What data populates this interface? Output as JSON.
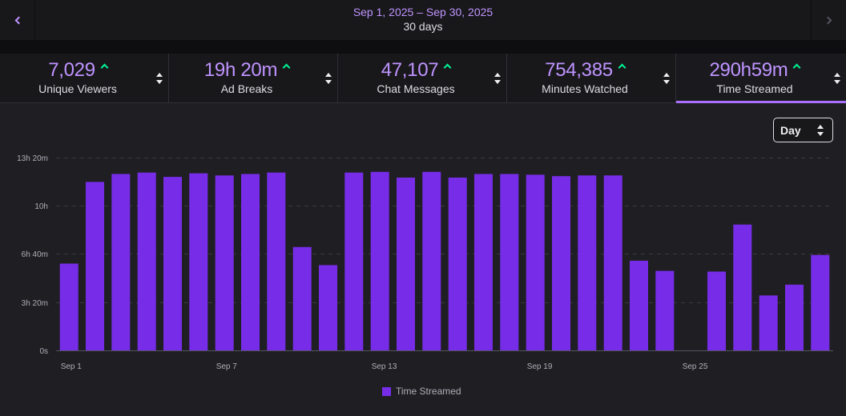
{
  "header": {
    "date_range": "Sep 1, 2025 – Sep 30, 2025",
    "duration": "30 days"
  },
  "stats": [
    {
      "value": "7,029",
      "label": "Unique Viewers",
      "active": false
    },
    {
      "value": "19h 20m",
      "label": "Ad Breaks",
      "active": false
    },
    {
      "value": "47,107",
      "label": "Chat Messages",
      "active": false
    },
    {
      "value": "754,385",
      "label": "Minutes Watched",
      "active": false
    },
    {
      "value": "290h59m",
      "label": "Time Streamed",
      "active": true
    }
  ],
  "controls": {
    "granularity": "Day"
  },
  "colors": {
    "accent": "#bf94ff",
    "bar": "#772ce8",
    "trend_up": "#00f593"
  },
  "chart_data": {
    "type": "bar",
    "title": "",
    "xlabel": "",
    "ylabel": "",
    "units": "hours",
    "ylim": [
      0,
      13.333
    ],
    "yticks": [
      {
        "value": 0,
        "label": "0s"
      },
      {
        "value": 3.333,
        "label": "3h 20m"
      },
      {
        "value": 6.667,
        "label": "6h 40m"
      },
      {
        "value": 10,
        "label": "10h"
      },
      {
        "value": 13.333,
        "label": "13h 20m"
      }
    ],
    "grid": true,
    "categories": [
      "Sep 1",
      "Sep 2",
      "Sep 3",
      "Sep 4",
      "Sep 5",
      "Sep 6",
      "Sep 7",
      "Sep 8",
      "Sep 9",
      "Sep 10",
      "Sep 11",
      "Sep 12",
      "Sep 13",
      "Sep 14",
      "Sep 15",
      "Sep 16",
      "Sep 17",
      "Sep 18",
      "Sep 19",
      "Sep 20",
      "Sep 21",
      "Sep 22",
      "Sep 23",
      "Sep 24",
      "Sep 25",
      "Sep 26",
      "Sep 27",
      "Sep 28",
      "Sep 29",
      "Sep 30"
    ],
    "xtick_labels": [
      "Sep 1",
      "Sep 7",
      "Sep 13",
      "Sep 19",
      "Sep 25"
    ],
    "series": [
      {
        "name": "Time Streamed",
        "values": [
          6.0,
          11.65,
          12.2,
          12.3,
          12.0,
          12.25,
          12.1,
          12.2,
          12.3,
          7.15,
          5.9,
          12.3,
          12.35,
          11.95,
          12.35,
          11.95,
          12.2,
          12.2,
          12.15,
          12.05,
          12.1,
          12.1,
          6.2,
          5.5,
          0,
          5.45,
          8.7,
          3.8,
          4.55,
          6.6
        ]
      }
    ],
    "legend": "bottom-center"
  }
}
